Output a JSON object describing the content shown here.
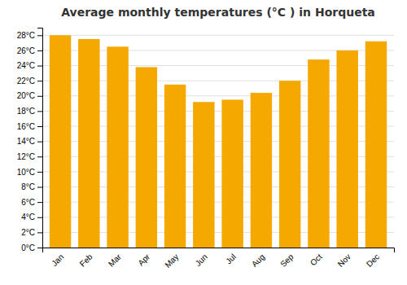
{
  "chart_data": {
    "type": "bar",
    "title": "Average monthly temperatures (°C ) in Horqueta",
    "categories": [
      "Jan",
      "Feb",
      "Mar",
      "Apr",
      "May",
      "Jun",
      "Jul",
      "Aug",
      "Sep",
      "Oct",
      "Nov",
      "Dec"
    ],
    "values": [
      28.0,
      27.5,
      26.5,
      23.8,
      21.5,
      19.2,
      19.5,
      20.4,
      22.0,
      24.8,
      26.0,
      27.2
    ],
    "color": "#F5A800",
    "ylim": [
      0,
      29
    ],
    "yticks": [
      {
        "value": 0,
        "label": "0°C"
      },
      {
        "value": 2,
        "label": "2°C"
      },
      {
        "value": 4,
        "label": "4°C"
      },
      {
        "value": 6,
        "label": "6°C"
      },
      {
        "value": 8,
        "label": "8°C"
      },
      {
        "value": 10,
        "label": "10°C"
      },
      {
        "value": 12,
        "label": "12°C"
      },
      {
        "value": 14,
        "label": "14°C"
      },
      {
        "value": 16,
        "label": "16°C"
      },
      {
        "value": 18,
        "label": "18°C"
      },
      {
        "value": 20,
        "label": "20°C"
      },
      {
        "value": 22,
        "label": "22°C"
      },
      {
        "value": 24,
        "label": "24°C"
      },
      {
        "value": 26,
        "label": "26°C"
      },
      {
        "value": 28,
        "label": "28°C"
      }
    ],
    "grid": true
  }
}
